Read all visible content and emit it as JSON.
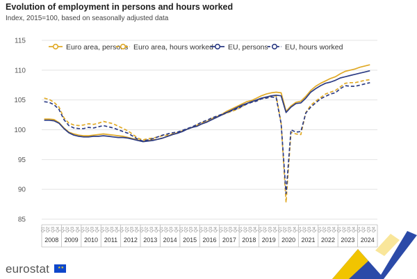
{
  "header": {
    "title": "Evolution of employment in persons and hours worked",
    "subtitle": "Index, 2015=100, based on seasonally adjusted data"
  },
  "brand": {
    "name": "eurostat",
    "flag_icon": "eu-flag-icon"
  },
  "colors": {
    "euro_area": "#e0a925",
    "eu": "#2b3b84"
  },
  "chart_data": {
    "type": "line",
    "title": "Evolution of employment in persons and hours worked",
    "subtitle": "Index, 2015=100, based on seasonally adjusted data",
    "ylim": [
      85,
      115
    ],
    "yticks": [
      85,
      90,
      95,
      100,
      105,
      110,
      115
    ],
    "x_years": [
      "2008",
      "2009",
      "2010",
      "2011",
      "2012",
      "2013",
      "2014",
      "2015",
      "2016",
      "2017",
      "2018",
      "2019",
      "2020",
      "2021",
      "2022",
      "2023",
      "2024"
    ],
    "x_quarter_labels": [
      "Q1",
      "Q2",
      "Q3",
      "Q4"
    ],
    "x": [
      "2008-Q1",
      "2008-Q2",
      "2008-Q3",
      "2008-Q4",
      "2009-Q1",
      "2009-Q2",
      "2009-Q3",
      "2009-Q4",
      "2010-Q1",
      "2010-Q2",
      "2010-Q3",
      "2010-Q4",
      "2011-Q1",
      "2011-Q2",
      "2011-Q3",
      "2011-Q4",
      "2012-Q1",
      "2012-Q2",
      "2012-Q3",
      "2012-Q4",
      "2013-Q1",
      "2013-Q2",
      "2013-Q3",
      "2013-Q4",
      "2014-Q1",
      "2014-Q2",
      "2014-Q3",
      "2014-Q4",
      "2015-Q1",
      "2015-Q2",
      "2015-Q3",
      "2015-Q4",
      "2016-Q1",
      "2016-Q2",
      "2016-Q3",
      "2016-Q4",
      "2017-Q1",
      "2017-Q2",
      "2017-Q3",
      "2017-Q4",
      "2018-Q1",
      "2018-Q2",
      "2018-Q3",
      "2018-Q4",
      "2019-Q1",
      "2019-Q2",
      "2019-Q3",
      "2019-Q4",
      "2020-Q1",
      "2020-Q2",
      "2020-Q3",
      "2020-Q4",
      "2021-Q1",
      "2021-Q2",
      "2021-Q3",
      "2021-Q4",
      "2022-Q1",
      "2022-Q2",
      "2022-Q3",
      "2022-Q4",
      "2023-Q1",
      "2023-Q2",
      "2023-Q3",
      "2023-Q4",
      "2024-Q1",
      "2024-Q2",
      "2024-Q3"
    ],
    "series": [
      {
        "name": "Euro area, persons",
        "color": "#e0a925",
        "dashed": false,
        "values": [
          101.8,
          101.8,
          101.7,
          101.2,
          100.3,
          99.6,
          99.3,
          99.1,
          99.0,
          99.0,
          99.1,
          99.2,
          99.3,
          99.2,
          99.1,
          99.0,
          98.9,
          98.7,
          98.5,
          98.3,
          98.1,
          98.2,
          98.3,
          98.4,
          98.6,
          98.9,
          99.2,
          99.5,
          99.8,
          100.1,
          100.4,
          100.7,
          101.0,
          101.4,
          101.8,
          102.2,
          102.6,
          103.1,
          103.5,
          103.9,
          104.3,
          104.7,
          104.9,
          105.3,
          105.7,
          106.0,
          106.2,
          106.3,
          106.2,
          103.1,
          104.0,
          104.6,
          104.8,
          105.6,
          106.6,
          107.3,
          107.8,
          108.2,
          108.6,
          108.9,
          109.4,
          109.8,
          110.0,
          110.2,
          110.5,
          110.7,
          110.9
        ]
      },
      {
        "name": "Euro area, hours worked",
        "color": "#e0a925",
        "dashed": true,
        "values": [
          105.3,
          105.1,
          104.6,
          103.8,
          102.0,
          101.1,
          100.8,
          100.7,
          100.8,
          101.0,
          100.9,
          101.1,
          101.4,
          101.2,
          101.0,
          100.6,
          100.2,
          99.8,
          99.2,
          98.6,
          98.3,
          98.5,
          98.6,
          98.8,
          99.0,
          99.1,
          99.3,
          99.5,
          99.8,
          100.1,
          100.4,
          100.8,
          101.2,
          101.4,
          101.9,
          102.2,
          102.5,
          102.8,
          103.1,
          103.4,
          103.8,
          104.4,
          104.7,
          104.9,
          105.2,
          105.5,
          105.6,
          105.7,
          101.1,
          87.8,
          99.6,
          99.3,
          99.2,
          102.9,
          104.1,
          104.8,
          105.4,
          106.0,
          106.3,
          106.6,
          107.2,
          107.8,
          107.9,
          107.9,
          108.1,
          108.3,
          108.4
        ]
      },
      {
        "name": "EU, persons",
        "color": "#2b3b84",
        "dashed": false,
        "values": [
          101.6,
          101.6,
          101.5,
          101.1,
          100.2,
          99.5,
          99.1,
          98.9,
          98.8,
          98.8,
          98.9,
          98.9,
          99.0,
          98.9,
          98.8,
          98.7,
          98.7,
          98.6,
          98.4,
          98.2,
          98.0,
          98.1,
          98.2,
          98.4,
          98.6,
          98.9,
          99.2,
          99.4,
          99.7,
          100.1,
          100.4,
          100.6,
          101.0,
          101.3,
          101.7,
          102.1,
          102.5,
          102.9,
          103.3,
          103.7,
          104.1,
          104.4,
          104.7,
          105.0,
          105.3,
          105.5,
          105.7,
          105.8,
          105.7,
          102.9,
          103.8,
          104.4,
          104.5,
          105.3,
          106.3,
          106.9,
          107.4,
          107.8,
          108.0,
          108.3,
          108.7,
          108.9,
          109.1,
          109.3,
          109.5,
          109.7,
          109.9
        ]
      },
      {
        "name": "EU, hours worked",
        "color": "#2b3b84",
        "dashed": true,
        "values": [
          104.7,
          104.6,
          104.2,
          103.4,
          101.7,
          100.7,
          100.3,
          100.2,
          100.2,
          100.4,
          100.3,
          100.5,
          100.7,
          100.5,
          100.3,
          100.0,
          99.7,
          99.4,
          98.9,
          98.4,
          98.1,
          98.3,
          98.5,
          98.8,
          99.1,
          99.3,
          99.5,
          99.6,
          99.9,
          100.2,
          100.5,
          100.9,
          101.3,
          101.6,
          102.0,
          102.3,
          102.6,
          102.9,
          103.2,
          103.5,
          103.9,
          104.3,
          104.6,
          104.8,
          105.2,
          105.3,
          105.5,
          105.4,
          101.0,
          89.3,
          100.0,
          99.6,
          99.7,
          102.8,
          103.8,
          104.5,
          105.2,
          105.6,
          106.0,
          106.2,
          106.9,
          107.4,
          107.3,
          107.3,
          107.5,
          107.7,
          107.9
        ]
      }
    ],
    "legend_position": "top-right",
    "grid": "horizontal"
  }
}
